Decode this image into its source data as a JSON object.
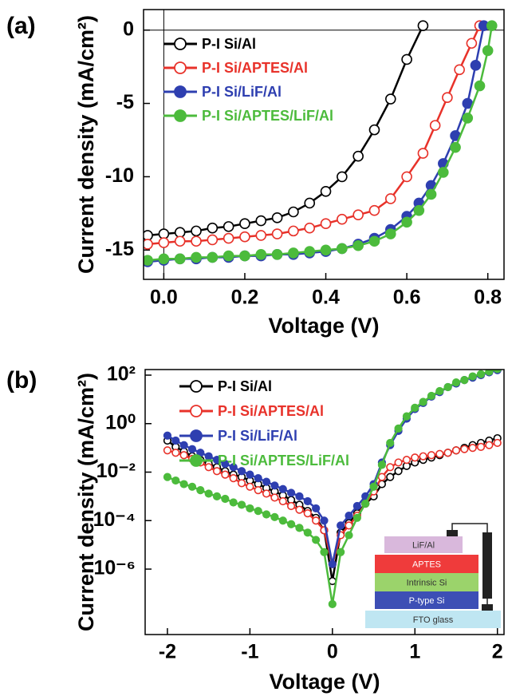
{
  "chart_data": [
    {
      "type": "line",
      "panel_label": "(a)",
      "xlabel": "Voltage (V)",
      "ylabel": "Current density (mA/cm²)",
      "xlim": [
        -0.05,
        0.84
      ],
      "ylim": [
        -17,
        1.4
      ],
      "xticks": [
        {
          "value": 0,
          "label": "0.0"
        },
        0.2,
        0.4,
        0.6,
        0.8
      ],
      "yticks": [
        0,
        -5,
        -10,
        -15
      ],
      "legend": "upper left",
      "series": [
        {
          "name": "P-I Si/Al",
          "color": "#000000",
          "filled": false,
          "x": [
            -0.04,
            0,
            0.04,
            0.08,
            0.12,
            0.16,
            0.2,
            0.24,
            0.28,
            0.32,
            0.36,
            0.4,
            0.44,
            0.48,
            0.52,
            0.56,
            0.6,
            0.64
          ],
          "values": [
            -14.0,
            -13.9,
            -13.8,
            -13.7,
            -13.5,
            -13.4,
            -13.2,
            -13.0,
            -12.8,
            -12.4,
            -11.8,
            -11.0,
            -10.0,
            -8.6,
            -6.8,
            -4.7,
            -2.0,
            0.3
          ]
        },
        {
          "name": "P-I Si/APTES/Al",
          "color": "#e8322a",
          "filled": false,
          "x": [
            -0.04,
            0,
            0.04,
            0.08,
            0.12,
            0.16,
            0.2,
            0.24,
            0.28,
            0.32,
            0.36,
            0.4,
            0.44,
            0.48,
            0.52,
            0.56,
            0.6,
            0.64,
            0.67,
            0.7,
            0.73,
            0.76,
            0.78
          ],
          "values": [
            -14.6,
            -14.5,
            -14.4,
            -14.4,
            -14.3,
            -14.2,
            -14.1,
            -14.0,
            -13.9,
            -13.7,
            -13.5,
            -13.2,
            -12.9,
            -12.6,
            -12.3,
            -11.5,
            -10.0,
            -8.4,
            -6.5,
            -4.6,
            -2.7,
            -0.9,
            0.3
          ]
        },
        {
          "name": "P-I Si/LiF/Al",
          "color": "#2e3fb0",
          "filled": true,
          "x": [
            -0.04,
            0,
            0.04,
            0.08,
            0.12,
            0.16,
            0.2,
            0.24,
            0.28,
            0.32,
            0.36,
            0.4,
            0.44,
            0.48,
            0.52,
            0.56,
            0.6,
            0.63,
            0.66,
            0.69,
            0.72,
            0.75,
            0.77,
            0.79
          ],
          "values": [
            -15.8,
            -15.7,
            -15.6,
            -15.6,
            -15.5,
            -15.5,
            -15.4,
            -15.4,
            -15.3,
            -15.3,
            -15.2,
            -15.1,
            -14.9,
            -14.6,
            -14.2,
            -13.6,
            -12.7,
            -11.8,
            -10.6,
            -9.1,
            -7.2,
            -5.0,
            -2.4,
            0.3
          ]
        },
        {
          "name": "P-I Si/APTES/LiF/Al",
          "color": "#4cbb3c",
          "filled": true,
          "x": [
            -0.04,
            0,
            0.04,
            0.08,
            0.12,
            0.16,
            0.2,
            0.24,
            0.28,
            0.32,
            0.36,
            0.4,
            0.44,
            0.48,
            0.52,
            0.56,
            0.6,
            0.63,
            0.66,
            0.69,
            0.72,
            0.75,
            0.78,
            0.8,
            0.81
          ],
          "values": [
            -15.7,
            -15.6,
            -15.6,
            -15.5,
            -15.5,
            -15.4,
            -15.4,
            -15.3,
            -15.3,
            -15.2,
            -15.1,
            -15.0,
            -14.9,
            -14.7,
            -14.4,
            -13.9,
            -13.1,
            -12.3,
            -11.2,
            -9.7,
            -8.0,
            -6.0,
            -3.8,
            -1.4,
            0.3
          ]
        }
      ]
    },
    {
      "type": "line",
      "panel_label": "(b)",
      "xlabel": "Voltage (V)",
      "ylabel": "Current density (mA/cm²)",
      "xlim": [
        -2.27,
        2.08
      ],
      "ylim": [
        2e-09,
        170
      ],
      "yscale": "log",
      "xticks": [
        -2,
        -1,
        0,
        1,
        2
      ],
      "yticks": [
        {
          "value": 1e-06,
          "label": "10⁻⁶"
        },
        {
          "value": 0.0001,
          "label": "10⁻⁴"
        },
        {
          "value": 0.01,
          "label": "10⁻²"
        },
        {
          "value": 1,
          "label": "10⁰"
        },
        {
          "value": 100,
          "label": "10²"
        }
      ],
      "legend": "upper center",
      "x": [
        -2,
        -1.9,
        -1.8,
        -1.7,
        -1.6,
        -1.5,
        -1.4,
        -1.3,
        -1.2,
        -1.1,
        -1,
        -0.9,
        -0.8,
        -0.7,
        -0.6,
        -0.5,
        -0.4,
        -0.3,
        -0.2,
        -0.1,
        0,
        0.1,
        0.2,
        0.3,
        0.4,
        0.5,
        0.6,
        0.7,
        0.8,
        0.9,
        1,
        1.1,
        1.2,
        1.3,
        1.4,
        1.5,
        1.6,
        1.7,
        1.8,
        1.9,
        2
      ],
      "series": [
        {
          "name": "P-I Si/Al",
          "color": "#000000",
          "filled": false,
          "values": [
            0.2,
            0.11,
            0.071,
            0.045,
            0.032,
            0.022,
            0.016,
            0.011,
            0.0079,
            0.0063,
            0.0045,
            0.0032,
            0.0022,
            0.0016,
            0.0011,
            0.00071,
            0.00045,
            0.00025,
            0.00013,
            4e-05,
            3.2e-07,
            3.2e-05,
            7.9e-05,
            0.0002,
            0.0005,
            0.001,
            0.0032,
            0.0063,
            0.011,
            0.018,
            0.025,
            0.032,
            0.04,
            0.05,
            0.063,
            0.079,
            0.1,
            0.13,
            0.16,
            0.2,
            0.25
          ]
        },
        {
          "name": "P-I Si/APTES/Al",
          "color": "#e8322a",
          "filled": false,
          "values": [
            0.079,
            0.063,
            0.05,
            0.035,
            0.025,
            0.016,
            0.011,
            0.0079,
            0.0056,
            0.0035,
            0.0025,
            0.0018,
            0.0013,
            0.00089,
            0.00063,
            0.0004,
            0.00028,
            0.0002,
            0.0001,
            4e-05,
            1.6e-06,
            2.5e-05,
            6.3e-05,
            0.00016,
            0.0005,
            0.0016,
            0.0063,
            0.016,
            0.025,
            0.032,
            0.04,
            0.045,
            0.05,
            0.056,
            0.063,
            0.079,
            0.089,
            0.1,
            0.11,
            0.13,
            0.16
          ]
        },
        {
          "name": "P-I Si/LiF/Al",
          "color": "#2e3fb0",
          "filled": true,
          "values": [
            0.32,
            0.2,
            0.13,
            0.089,
            0.063,
            0.045,
            0.032,
            0.022,
            0.016,
            0.011,
            0.0079,
            0.0056,
            0.004,
            0.0028,
            0.002,
            0.0014,
            0.001,
            0.00063,
            0.00032,
            0.0001,
            1.6e-06,
            6.3e-05,
            0.00016,
            0.0004,
            0.001,
            0.0032,
            0.025,
            0.13,
            0.5,
            1.6,
            4,
            7.1,
            13,
            20,
            32,
            45,
            63,
            79,
            100,
            130,
            160
          ]
        },
        {
          "name": "P-I Si/APTES/LiF/Al",
          "color": "#4cbb3c",
          "filled": true,
          "values": [
            0.0063,
            0.0045,
            0.0032,
            0.0025,
            0.0018,
            0.0013,
            0.001,
            0.00079,
            0.00056,
            0.00045,
            0.00032,
            0.00025,
            0.00018,
            0.00014,
            0.0001,
            7.1e-05,
            5e-05,
            3.2e-05,
            1.6e-05,
            5e-06,
            3.6e-08,
            5e-06,
            2.5e-05,
            0.00013,
            0.0005,
            0.0025,
            0.02,
            0.16,
            0.63,
            2,
            4.5,
            7.9,
            14,
            22,
            32,
            50,
            63,
            89,
            110,
            140,
            180
          ]
        }
      ],
      "inset": {
        "layers": [
          "LiF/Al",
          "APTES",
          "Intrinsic Si",
          "P-type Si",
          "FTO glass"
        ]
      }
    }
  ]
}
